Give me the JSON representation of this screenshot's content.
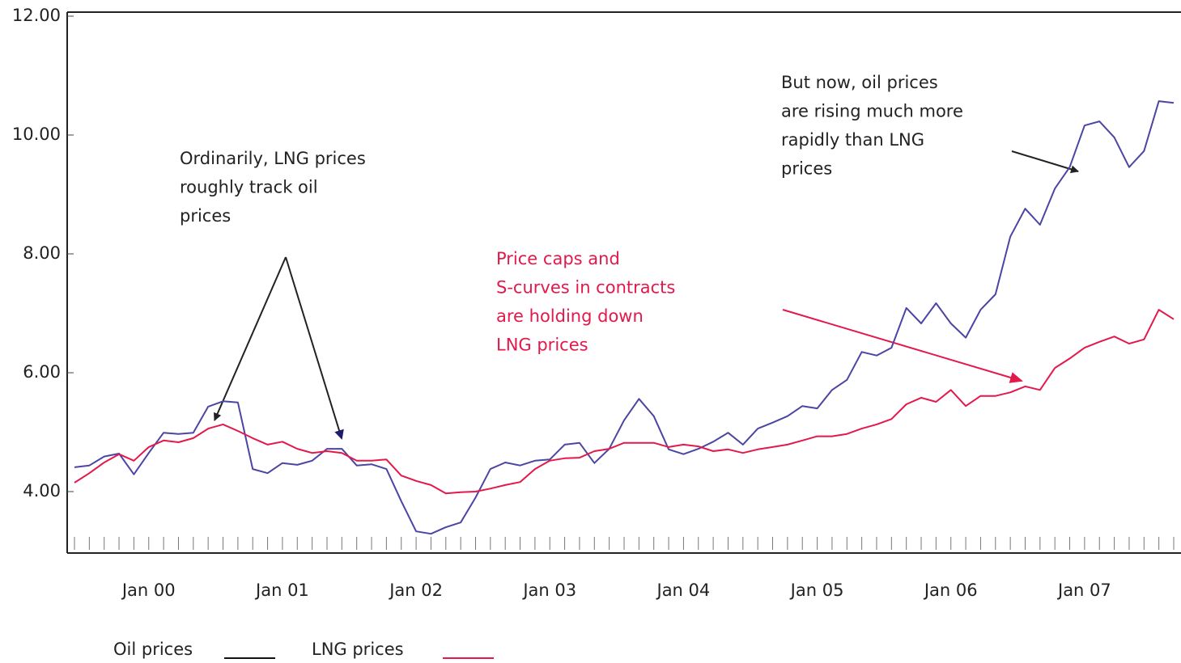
{
  "chart_data": {
    "type": "line",
    "categories": [
      null,
      null,
      null,
      null,
      null,
      "Jan 00",
      null,
      null,
      null,
      null,
      null,
      null,
      null,
      null,
      "Jan 01",
      null,
      null,
      null,
      null,
      null,
      null,
      null,
      null,
      "Jan 02",
      null,
      null,
      null,
      null,
      null,
      null,
      null,
      null,
      "Jan 03",
      null,
      null,
      null,
      null,
      null,
      null,
      null,
      null,
      "Jan 04",
      null,
      null,
      null,
      null,
      null,
      null,
      null,
      null,
      "Jan 05",
      null,
      null,
      null,
      null,
      null,
      null,
      null,
      null,
      "Jan 06",
      null,
      null,
      null,
      null,
      null,
      null,
      null,
      null,
      "Jan 07",
      null,
      null,
      null,
      null,
      null,
      null
    ],
    "series": [
      {
        "name": "Oil prices",
        "color": "#4b45a3",
        "legend_color": "#111111",
        "values": [
          4.41,
          4.44,
          4.59,
          4.64,
          4.29,
          4.65,
          4.99,
          4.97,
          4.99,
          5.43,
          5.52,
          5.5,
          4.38,
          4.31,
          4.48,
          4.45,
          4.52,
          4.72,
          4.72,
          4.44,
          4.46,
          4.38,
          3.84,
          3.33,
          3.29,
          3.4,
          3.48,
          3.9,
          4.38,
          4.49,
          4.44,
          4.52,
          4.54,
          4.79,
          4.82,
          4.48,
          4.72,
          5.2,
          5.56,
          5.27,
          4.71,
          4.63,
          4.72,
          4.84,
          4.99,
          4.79,
          5.06,
          5.16,
          5.27,
          5.44,
          5.4,
          5.71,
          5.88,
          6.35,
          6.29,
          6.42,
          7.09,
          6.83,
          7.17,
          6.83,
          6.59,
          7.06,
          7.32,
          8.29,
          8.76,
          8.49,
          9.1,
          9.46,
          10.16,
          10.23,
          9.96,
          9.46,
          9.73,
          10.57,
          10.54
        ]
      },
      {
        "name": "LNG prices",
        "color": "#e3194b",
        "legend_color": "#e3194b",
        "values": [
          4.15,
          4.31,
          4.49,
          4.63,
          4.52,
          4.75,
          4.86,
          4.83,
          4.9,
          5.06,
          5.13,
          5.02,
          4.9,
          4.79,
          4.84,
          4.72,
          4.65,
          4.68,
          4.65,
          4.52,
          4.52,
          4.54,
          4.27,
          4.18,
          4.11,
          3.97,
          3.99,
          4.0,
          4.05,
          4.11,
          4.16,
          4.38,
          4.52,
          4.56,
          4.57,
          4.68,
          4.72,
          4.82,
          4.82,
          4.82,
          4.75,
          4.79,
          4.76,
          4.68,
          4.71,
          4.65,
          4.71,
          4.75,
          4.79,
          4.86,
          4.93,
          4.93,
          4.97,
          5.06,
          5.13,
          5.22,
          5.47,
          5.58,
          5.51,
          5.71,
          5.44,
          5.61,
          5.61,
          5.67,
          5.77,
          5.71,
          6.08,
          6.24,
          6.42,
          6.52,
          6.61,
          6.49,
          6.56,
          7.06,
          6.9
        ]
      }
    ],
    "ylim": [
      3,
      12
    ],
    "yticks": [
      {
        "value": 4,
        "label": "4.00"
      },
      {
        "value": 6,
        "label": "6.00"
      },
      {
        "value": 8,
        "label": "8.00"
      },
      {
        "value": 10,
        "label": "10.00"
      },
      {
        "value": 12,
        "label": "12.00"
      }
    ],
    "grid": false,
    "annotations": [
      {
        "lines": [
          "Ordinarily, LNG prices",
          "roughly track oil",
          "prices"
        ],
        "color": "#222222"
      },
      {
        "lines": [
          "Price caps and",
          "S-curves in contracts",
          "are holding down",
          "LNG prices"
        ],
        "color": "#e3194b"
      },
      {
        "lines": [
          "But now, oil prices",
          "are rising much more",
          "rapidly than LNG",
          "prices"
        ],
        "color": "#222222"
      }
    ]
  }
}
